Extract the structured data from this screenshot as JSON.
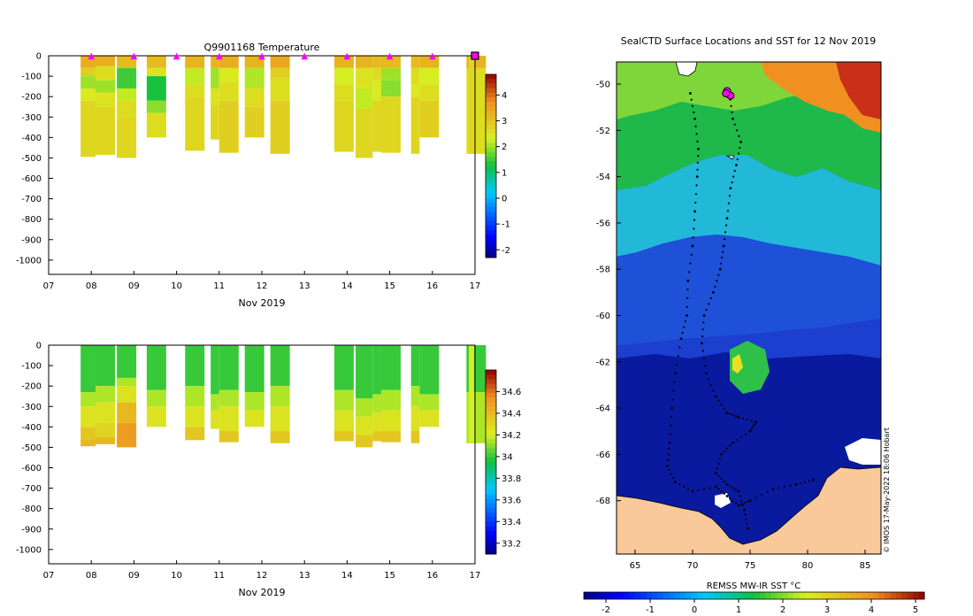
{
  "temperature_panel": {
    "title": "Q9901168  Temperature",
    "x_month_label": "Nov 2019",
    "x_ticks": [
      "07",
      "08",
      "09",
      "10",
      "11",
      "12",
      "13",
      "14",
      "15",
      "16",
      "17"
    ],
    "y_ticks": [
      "0",
      "-100",
      "-200",
      "-300",
      "-400",
      "-500",
      "-600",
      "-700",
      "-800",
      "-900",
      "-1000"
    ],
    "colorbar_ticks": [
      "4",
      "3",
      "2",
      "1",
      "0",
      "-1",
      "-2"
    ],
    "colorbar_range": [
      -2.3,
      4.8
    ],
    "profile_marker_days": [
      8,
      9,
      10,
      11,
      12,
      13,
      14,
      15,
      16
    ],
    "profiles": [
      {
        "day": 7.75,
        "depth": 495,
        "layers": [
          [
            0,
            60,
            3.3
          ],
          [
            60,
            100,
            2.8
          ],
          [
            100,
            160,
            2.0
          ],
          [
            160,
            220,
            2.4
          ],
          [
            220,
            495,
            2.7
          ]
        ]
      },
      {
        "day": 8.1,
        "depth": 485,
        "layers": [
          [
            0,
            50,
            3.3
          ],
          [
            50,
            120,
            2.6
          ],
          [
            120,
            180,
            2.0
          ],
          [
            180,
            250,
            2.5
          ],
          [
            250,
            485,
            2.7
          ]
        ]
      },
      {
        "day": 8.6,
        "depth": 500,
        "layers": [
          [
            0,
            60,
            3.1
          ],
          [
            60,
            160,
            1.5
          ],
          [
            160,
            220,
            2.2
          ],
          [
            220,
            300,
            2.6
          ],
          [
            300,
            500,
            2.7
          ]
        ]
      },
      {
        "day": 9.3,
        "depth": 400,
        "layers": [
          [
            0,
            60,
            3.1
          ],
          [
            60,
            100,
            2.5
          ],
          [
            100,
            220,
            1.3
          ],
          [
            220,
            280,
            1.9
          ],
          [
            280,
            400,
            2.6
          ]
        ]
      },
      {
        "day": 10.2,
        "depth": 465,
        "layers": [
          [
            0,
            60,
            3.2
          ],
          [
            60,
            140,
            2.2
          ],
          [
            140,
            200,
            2.6
          ],
          [
            200,
            465,
            2.7
          ]
        ]
      },
      {
        "day": 10.8,
        "depth": 410,
        "layers": [
          [
            0,
            60,
            3.2
          ],
          [
            60,
            160,
            2.0
          ],
          [
            160,
            240,
            2.5
          ],
          [
            240,
            410,
            2.7
          ]
        ]
      },
      {
        "day": 11.0,
        "depth": 475,
        "layers": [
          [
            0,
            60,
            3.3
          ],
          [
            60,
            130,
            2.4
          ],
          [
            130,
            220,
            2.6
          ],
          [
            220,
            475,
            2.8
          ]
        ]
      },
      {
        "day": 11.6,
        "depth": 400,
        "layers": [
          [
            0,
            60,
            3.2
          ],
          [
            60,
            160,
            2.1
          ],
          [
            160,
            250,
            2.6
          ],
          [
            250,
            400,
            2.8
          ]
        ]
      },
      {
        "day": 12.2,
        "depth": 480,
        "layers": [
          [
            0,
            60,
            3.4
          ],
          [
            60,
            110,
            2.8
          ],
          [
            110,
            220,
            2.6
          ],
          [
            220,
            480,
            2.8
          ]
        ]
      },
      {
        "day": 13.7,
        "depth": 470,
        "layers": [
          [
            0,
            60,
            3.2
          ],
          [
            60,
            140,
            2.3
          ],
          [
            140,
            220,
            2.6
          ],
          [
            220,
            470,
            2.7
          ]
        ]
      },
      {
        "day": 14.2,
        "depth": 500,
        "layers": [
          [
            0,
            60,
            3.2
          ],
          [
            60,
            160,
            2.5
          ],
          [
            160,
            260,
            2.2
          ],
          [
            260,
            500,
            2.7
          ]
        ]
      },
      {
        "day": 14.6,
        "depth": 470,
        "layers": [
          [
            0,
            60,
            3.1
          ],
          [
            60,
            120,
            2.6
          ],
          [
            120,
            220,
            2.4
          ],
          [
            220,
            470,
            2.7
          ]
        ]
      },
      {
        "day": 14.8,
        "depth": 475,
        "layers": [
          [
            0,
            60,
            3.1
          ],
          [
            60,
            120,
            2.0
          ],
          [
            120,
            200,
            1.9
          ],
          [
            200,
            475,
            2.7
          ]
        ]
      },
      {
        "day": 15.5,
        "depth": 480,
        "layers": [
          [
            0,
            60,
            3.1
          ],
          [
            60,
            140,
            2.6
          ],
          [
            140,
            200,
            2.4
          ],
          [
            200,
            480,
            2.7
          ]
        ]
      },
      {
        "day": 15.7,
        "depth": 400,
        "layers": [
          [
            0,
            60,
            3.2
          ],
          [
            60,
            140,
            2.3
          ],
          [
            140,
            220,
            2.6
          ],
          [
            220,
            400,
            2.8
          ]
        ]
      },
      {
        "day": 16.8,
        "depth": 480,
        "layers": [
          [
            0,
            60,
            3.2
          ],
          [
            60,
            480,
            2.6
          ]
        ]
      }
    ],
    "latest_marker_day": 17
  },
  "salinity_panel": {
    "x_month_label": "Nov 2019",
    "x_ticks": [
      "07",
      "08",
      "09",
      "10",
      "11",
      "12",
      "13",
      "14",
      "15",
      "16",
      "17"
    ],
    "y_ticks": [
      "0",
      "-100",
      "-200",
      "-300",
      "-400",
      "-500",
      "-600",
      "-700",
      "-800",
      "-900",
      "-1000"
    ],
    "colorbar_ticks": [
      "34.6",
      "34.4",
      "34.2",
      "34",
      "33.8",
      "33.6",
      "33.4",
      "33.2"
    ],
    "colorbar_range": [
      33.1,
      34.8
    ],
    "profiles": [
      {
        "day": 7.75,
        "depth": 495,
        "layers": [
          [
            0,
            230,
            34.0
          ],
          [
            230,
            300,
            34.15
          ],
          [
            300,
            400,
            34.25
          ],
          [
            400,
            460,
            34.35
          ],
          [
            460,
            495,
            34.4
          ]
        ]
      },
      {
        "day": 8.1,
        "depth": 485,
        "layers": [
          [
            0,
            200,
            34.0
          ],
          [
            200,
            280,
            34.15
          ],
          [
            280,
            380,
            34.25
          ],
          [
            380,
            450,
            34.3
          ],
          [
            450,
            485,
            34.4
          ]
        ]
      },
      {
        "day": 8.6,
        "depth": 500,
        "layers": [
          [
            0,
            160,
            34.0
          ],
          [
            160,
            200,
            34.15
          ],
          [
            200,
            280,
            34.25
          ],
          [
            280,
            380,
            34.4
          ],
          [
            380,
            500,
            34.5
          ]
        ]
      },
      {
        "day": 9.3,
        "depth": 400,
        "layers": [
          [
            0,
            220,
            34.0
          ],
          [
            220,
            300,
            34.15
          ],
          [
            300,
            400,
            34.25
          ]
        ]
      },
      {
        "day": 10.2,
        "depth": 465,
        "layers": [
          [
            0,
            200,
            34.0
          ],
          [
            200,
            300,
            34.15
          ],
          [
            300,
            400,
            34.25
          ],
          [
            400,
            465,
            34.35
          ]
        ]
      },
      {
        "day": 10.8,
        "depth": 410,
        "layers": [
          [
            0,
            240,
            34.0
          ],
          [
            240,
            320,
            34.15
          ],
          [
            320,
            410,
            34.25
          ]
        ]
      },
      {
        "day": 11.0,
        "depth": 475,
        "layers": [
          [
            0,
            220,
            34.0
          ],
          [
            220,
            300,
            34.15
          ],
          [
            300,
            420,
            34.25
          ],
          [
            420,
            475,
            34.35
          ]
        ]
      },
      {
        "day": 11.6,
        "depth": 400,
        "layers": [
          [
            0,
            230,
            34.0
          ],
          [
            230,
            320,
            34.15
          ],
          [
            320,
            400,
            34.25
          ]
        ]
      },
      {
        "day": 12.2,
        "depth": 480,
        "layers": [
          [
            0,
            200,
            34.0
          ],
          [
            200,
            300,
            34.15
          ],
          [
            300,
            420,
            34.25
          ],
          [
            420,
            480,
            34.35
          ]
        ]
      },
      {
        "day": 13.7,
        "depth": 470,
        "layers": [
          [
            0,
            220,
            34.0
          ],
          [
            220,
            320,
            34.15
          ],
          [
            320,
            420,
            34.25
          ],
          [
            420,
            470,
            34.35
          ]
        ]
      },
      {
        "day": 14.2,
        "depth": 500,
        "layers": [
          [
            0,
            260,
            34.0
          ],
          [
            260,
            350,
            34.15
          ],
          [
            350,
            440,
            34.25
          ],
          [
            440,
            500,
            34.35
          ]
        ]
      },
      {
        "day": 14.6,
        "depth": 470,
        "layers": [
          [
            0,
            240,
            34.0
          ],
          [
            240,
            330,
            34.15
          ],
          [
            330,
            420,
            34.25
          ],
          [
            420,
            470,
            34.35
          ]
        ]
      },
      {
        "day": 14.8,
        "depth": 475,
        "layers": [
          [
            0,
            220,
            34.0
          ],
          [
            220,
            320,
            34.15
          ],
          [
            320,
            420,
            34.25
          ],
          [
            420,
            475,
            34.35
          ]
        ]
      },
      {
        "day": 15.5,
        "depth": 480,
        "layers": [
          [
            0,
            200,
            34.0
          ],
          [
            200,
            300,
            34.15
          ],
          [
            300,
            420,
            34.25
          ],
          [
            420,
            480,
            34.35
          ]
        ]
      },
      {
        "day": 15.7,
        "depth": 400,
        "layers": [
          [
            0,
            240,
            34.0
          ],
          [
            240,
            320,
            34.15
          ],
          [
            320,
            400,
            34.25
          ]
        ]
      },
      {
        "day": 16.8,
        "depth": 480,
        "layers": [
          [
            0,
            230,
            34.0
          ],
          [
            230,
            480,
            34.15
          ]
        ]
      }
    ]
  },
  "map_panel": {
    "title": "SealCTD Surface Locations and SST for 12 Nov 2019",
    "lon_ticks": [
      "65",
      "70",
      "75",
      "80",
      "85"
    ],
    "lat_ticks": [
      "-50",
      "-52",
      "-54",
      "-56",
      "-58",
      "-60",
      "-62",
      "-64",
      "-66",
      "-68"
    ],
    "lon_range": [
      64,
      86
    ],
    "lat_range": [
      -70,
      -49
    ],
    "credit": "© IMOS 17-May-2022 18:06 Hobart",
    "colorbar_label": "REMSS MW-IR SST °C",
    "colorbar_ticks": [
      "-2",
      "-1",
      "0",
      "1",
      "2",
      "3",
      "4",
      "5"
    ],
    "colorbar_range": [
      -2.5,
      5.2
    ],
    "track": [
      [
        69.8,
        -50.4
      ],
      [
        70.2,
        -51.5
      ],
      [
        70.5,
        -52.8
      ],
      [
        70.4,
        -54.0
      ],
      [
        70.2,
        -55.5
      ],
      [
        70.0,
        -57.0
      ],
      [
        69.6,
        -58.5
      ],
      [
        69.5,
        -60.0
      ],
      [
        69.0,
        -61.0
      ],
      [
        68.5,
        -62.5
      ],
      [
        68.2,
        -64.0
      ],
      [
        68.0,
        -65.5
      ],
      [
        67.8,
        -66.5
      ],
      [
        68.5,
        -67.2
      ],
      [
        70.0,
        -67.6
      ],
      [
        72.0,
        -67.4
      ],
      [
        73.0,
        -67.8
      ],
      [
        74.0,
        -68.2
      ],
      [
        75.0,
        -68.0
      ],
      [
        77.0,
        -67.5
      ],
      [
        79.0,
        -67.3
      ],
      [
        80.5,
        -67.1
      ],
      [
        73.2,
        -50.4
      ],
      [
        73.5,
        -51.5
      ],
      [
        74.2,
        -52.5
      ],
      [
        73.8,
        -53.5
      ],
      [
        73.3,
        -54.5
      ],
      [
        73.0,
        -55.8
      ],
      [
        72.7,
        -57.0
      ],
      [
        72.4,
        -58.0
      ],
      [
        71.8,
        -59.0
      ],
      [
        71.0,
        -60.0
      ],
      [
        70.8,
        -61.2
      ],
      [
        71.2,
        -62.5
      ],
      [
        72.0,
        -63.5
      ],
      [
        73.0,
        -64.2
      ],
      [
        74.0,
        -64.4
      ],
      [
        75.5,
        -64.6
      ],
      [
        75.0,
        -65.0
      ],
      [
        73.5,
        -65.5
      ],
      [
        72.5,
        -66.0
      ],
      [
        72.0,
        -66.8
      ],
      [
        73.0,
        -67.3
      ],
      [
        74.0,
        -67.6
      ],
      [
        74.5,
        -68.4
      ],
      [
        74.8,
        -69.2
      ]
    ],
    "surface_locations": [
      [
        73.0,
        -50.3
      ],
      [
        73.3,
        -50.5
      ],
      [
        72.9,
        -50.4
      ]
    ]
  }
}
